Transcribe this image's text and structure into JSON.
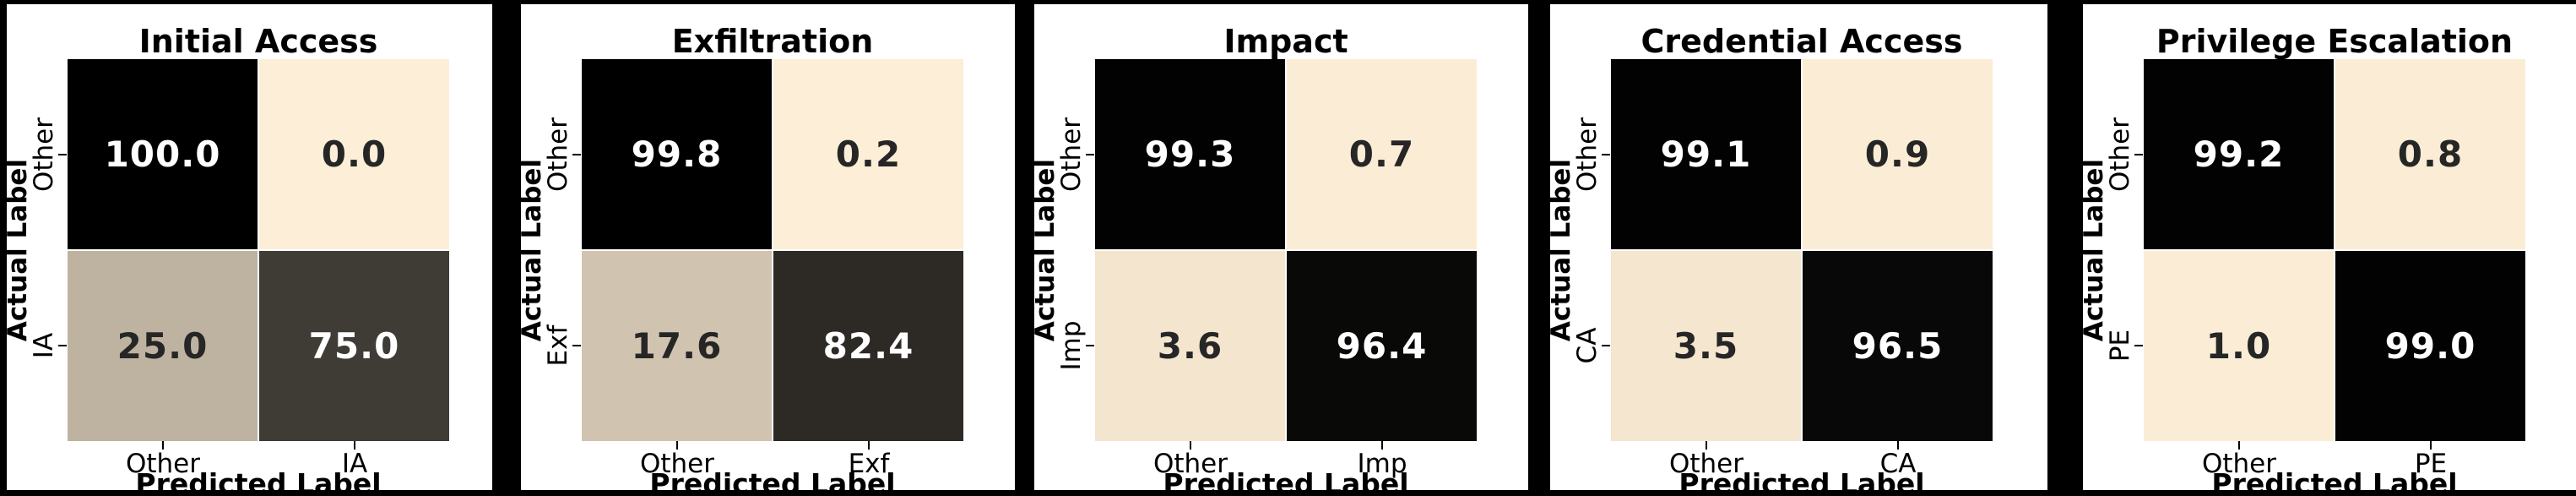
{
  "page": {
    "background": "#000000",
    "panel_background": "#ffffff",
    "text_color": "#000000"
  },
  "heatmap_style": {
    "cmap_low": "#fdeed7",
    "cmap_high": "#000000",
    "gridline_color": "#ffffff",
    "annot_color_on_light": "#262626",
    "annot_color_on_dark": "#ffffff",
    "value_format": ".1f"
  },
  "chart_data": [
    {
      "type": "heatmap",
      "title": "Initial Access",
      "xlabel": "Predicted Label",
      "ylabel": "Actual Label",
      "x_ticklabels": [
        "Other",
        "IA"
      ],
      "y_ticklabels": [
        "Other",
        "IA"
      ],
      "rows": [
        [
          100.0,
          0.0
        ],
        [
          25.0,
          75.0
        ]
      ],
      "value_range": [
        0,
        100
      ],
      "grid": false,
      "legend": false
    },
    {
      "type": "heatmap",
      "title": "Exfiltration",
      "xlabel": "Predicted Label",
      "ylabel": "Actual Label",
      "x_ticklabels": [
        "Other",
        "Exf"
      ],
      "y_ticklabels": [
        "Other",
        "Exf"
      ],
      "rows": [
        [
          99.8,
          0.2
        ],
        [
          17.6,
          82.4
        ]
      ],
      "value_range": [
        0,
        100
      ],
      "grid": false,
      "legend": false
    },
    {
      "type": "heatmap",
      "title": "Impact",
      "xlabel": "Predicted Label",
      "ylabel": "Actual Label",
      "x_ticklabels": [
        "Other",
        "Imp"
      ],
      "y_ticklabels": [
        "Other",
        "Imp"
      ],
      "rows": [
        [
          99.3,
          0.7
        ],
        [
          3.6,
          96.4
        ]
      ],
      "value_range": [
        0,
        100
      ],
      "grid": false,
      "legend": false
    },
    {
      "type": "heatmap",
      "title": "Credential Access",
      "xlabel": "Predicted Label",
      "ylabel": "Actual Label",
      "x_ticklabels": [
        "Other",
        "CA"
      ],
      "y_ticklabels": [
        "Other",
        "CA"
      ],
      "rows": [
        [
          99.1,
          0.9
        ],
        [
          3.5,
          96.5
        ]
      ],
      "value_range": [
        0,
        100
      ],
      "grid": false,
      "legend": false
    },
    {
      "type": "heatmap",
      "title": "Privilege Escalation",
      "xlabel": "Predicted Label",
      "ylabel": "Actual Label",
      "x_ticklabels": [
        "Other",
        "PE"
      ],
      "y_ticklabels": [
        "Other",
        "PE"
      ],
      "rows": [
        [
          99.2,
          0.8
        ],
        [
          1.0,
          99.0
        ]
      ],
      "value_range": [
        0,
        100
      ],
      "grid": false,
      "legend": false
    }
  ]
}
